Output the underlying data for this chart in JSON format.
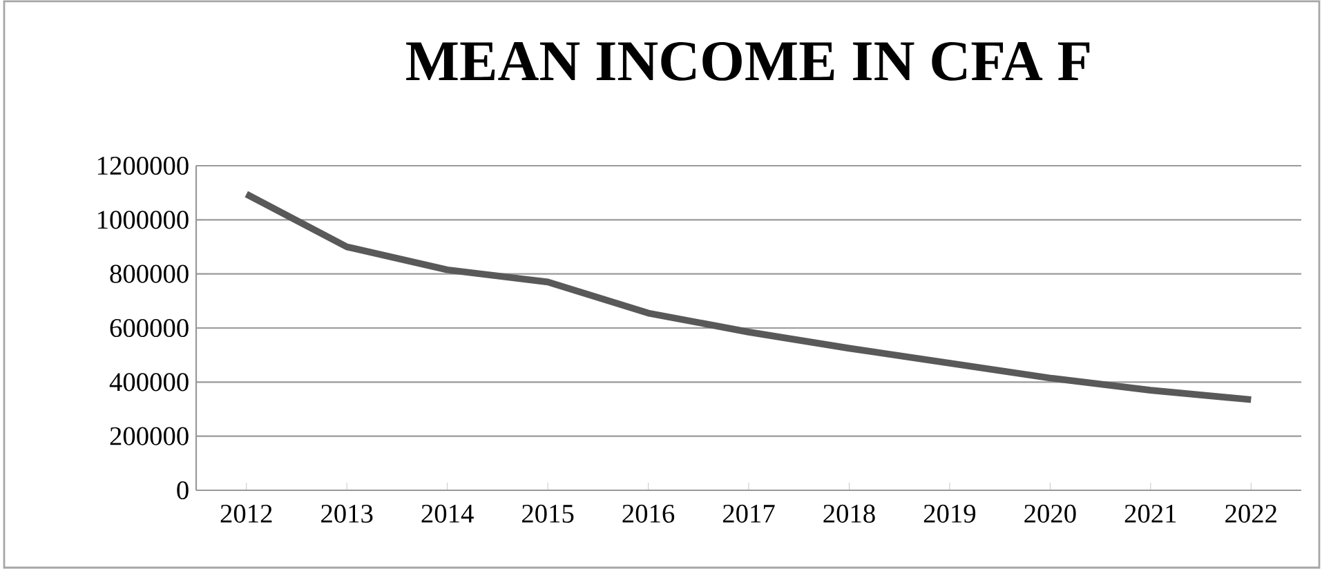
{
  "chart_data": {
    "type": "line",
    "title": "MEAN INCOME IN CFA F",
    "categories": [
      "2012",
      "2013",
      "2014",
      "2015",
      "2016",
      "2017",
      "2018",
      "2019",
      "2020",
      "2021",
      "2022"
    ],
    "values": [
      1095000,
      900000,
      815000,
      770000,
      655000,
      585000,
      525000,
      470000,
      415000,
      370000,
      335000
    ],
    "color": "#595959",
    "ylim": [
      0,
      1200000
    ],
    "yticks": [
      0,
      200000,
      400000,
      600000,
      800000,
      1000000,
      1200000
    ],
    "grid": "y",
    "marker": "none",
    "line_style": "solid"
  }
}
